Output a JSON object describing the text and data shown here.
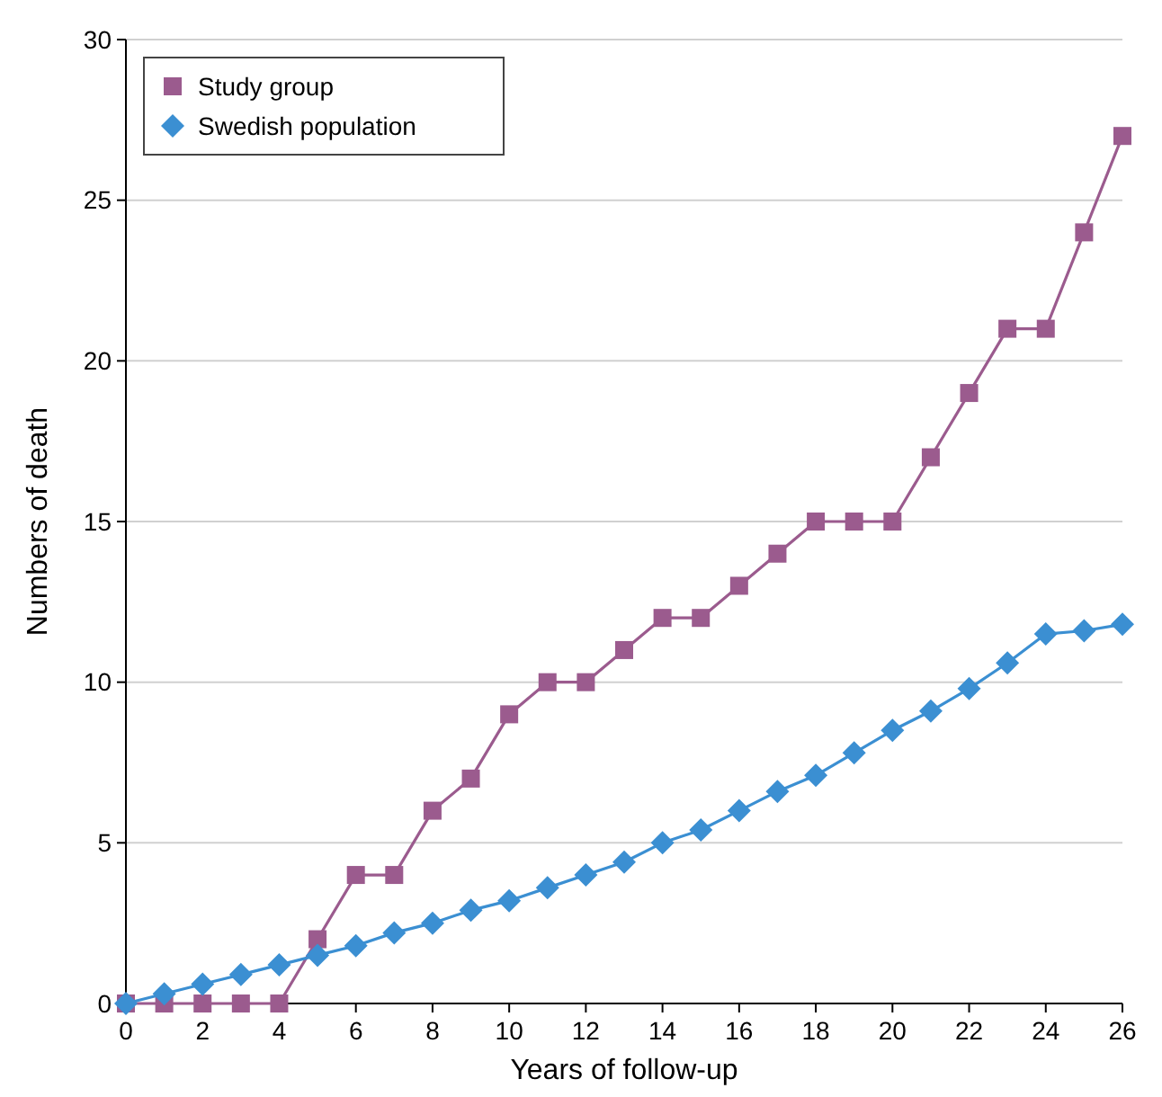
{
  "chart_data": {
    "type": "line",
    "xlabel": "Years of follow-up",
    "ylabel": "Numbers of death",
    "x": [
      0,
      1,
      2,
      3,
      4,
      5,
      6,
      7,
      8,
      9,
      10,
      11,
      12,
      13,
      14,
      15,
      16,
      17,
      18,
      19,
      20,
      21,
      22,
      23,
      24,
      25,
      26
    ],
    "series": [
      {
        "name": "Study group",
        "color": "#9b5b8e",
        "marker": "square",
        "values": [
          0,
          0,
          0,
          0,
          0,
          2,
          4,
          4,
          6,
          7,
          9,
          10,
          10,
          11,
          12,
          12,
          13,
          14,
          15,
          15,
          15,
          17,
          19,
          21,
          21,
          24,
          27
        ]
      },
      {
        "name": "Swedish population",
        "color": "#3b8fd2",
        "marker": "diamond",
        "values": [
          0,
          0.3,
          0.6,
          0.9,
          1.2,
          1.5,
          1.8,
          2.2,
          2.5,
          2.9,
          3.2,
          3.6,
          4,
          4.4,
          5,
          5.4,
          6,
          6.6,
          7.1,
          7.8,
          8.5,
          9.1,
          9.8,
          10.6,
          11.5,
          11.6,
          11.8
        ]
      }
    ],
    "xlim": [
      0,
      26
    ],
    "xticks": [
      0,
      2,
      4,
      6,
      8,
      10,
      12,
      14,
      16,
      18,
      20,
      22,
      24,
      26
    ],
    "ylim": [
      0,
      30
    ],
    "yticks": [
      0,
      5,
      10,
      15,
      20,
      25,
      30
    ],
    "grid": "y",
    "legend": "top left",
    "line_style": "solid"
  }
}
